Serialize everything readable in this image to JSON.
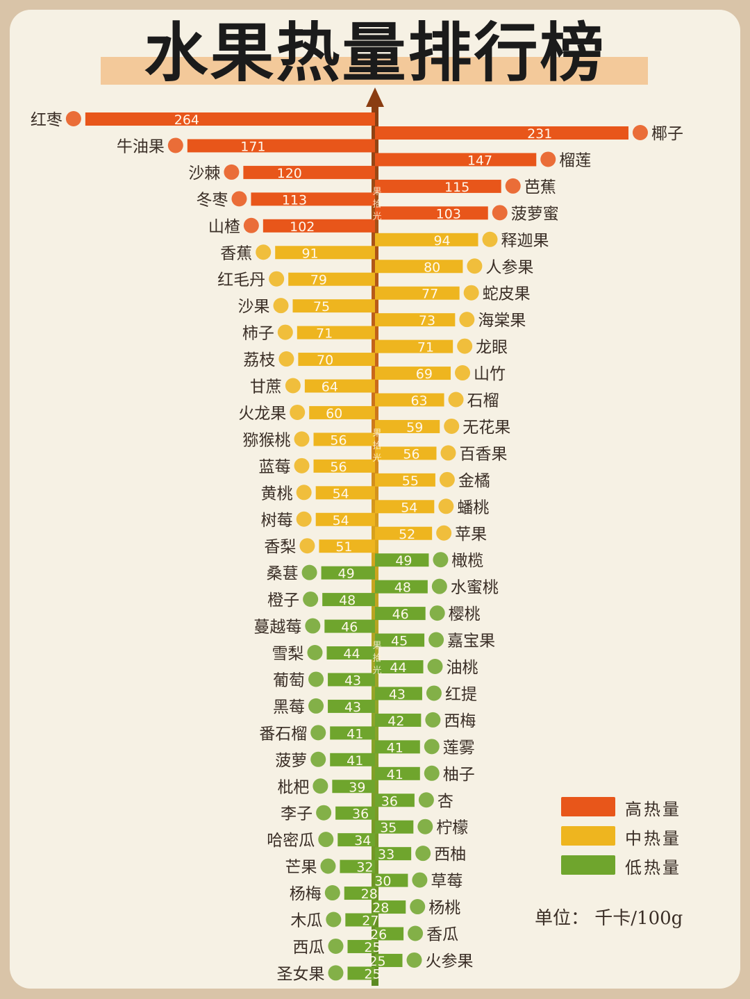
{
  "title": "水果热量排行榜",
  "unit_label": "单位：  千卡/100g",
  "watermark_text": [
    "果",
    "拾",
    "光"
  ],
  "legend": [
    {
      "label": "高热量",
      "color": "#e8561a"
    },
    {
      "label": "中热量",
      "color": "#eeb51f"
    },
    {
      "label": "低热量",
      "color": "#6fa52d"
    }
  ],
  "chart_data": {
    "type": "bar",
    "title": "水果热量排行榜",
    "orientation": "horizontal-diverging",
    "unit": "千卡/100g",
    "legend_position": "bottom-right",
    "series": [
      {
        "side": "left",
        "items": [
          {
            "name": "红枣",
            "value": 264,
            "level": "high"
          },
          {
            "name": "牛油果",
            "value": 171,
            "level": "high"
          },
          {
            "name": "沙棘",
            "value": 120,
            "level": "high"
          },
          {
            "name": "冬枣",
            "value": 113,
            "level": "high"
          },
          {
            "name": "山楂",
            "value": 102,
            "level": "high"
          },
          {
            "name": "香蕉",
            "value": 91,
            "level": "mid"
          },
          {
            "name": "红毛丹",
            "value": 79,
            "level": "mid"
          },
          {
            "name": "沙果",
            "value": 75,
            "level": "mid"
          },
          {
            "name": "柿子",
            "value": 71,
            "level": "mid"
          },
          {
            "name": "荔枝",
            "value": 70,
            "level": "mid"
          },
          {
            "name": "甘蔗",
            "value": 64,
            "level": "mid"
          },
          {
            "name": "火龙果",
            "value": 60,
            "level": "mid"
          },
          {
            "name": "猕猴桃",
            "value": 56,
            "level": "mid"
          },
          {
            "name": "蓝莓",
            "value": 56,
            "level": "mid"
          },
          {
            "name": "黄桃",
            "value": 54,
            "level": "mid"
          },
          {
            "name": "树莓",
            "value": 54,
            "level": "mid"
          },
          {
            "name": "香梨",
            "value": 51,
            "level": "mid"
          },
          {
            "name": "桑葚",
            "value": 49,
            "level": "low"
          },
          {
            "name": "橙子",
            "value": 48,
            "level": "low"
          },
          {
            "name": "蔓越莓",
            "value": 46,
            "level": "low"
          },
          {
            "name": "雪梨",
            "value": 44,
            "level": "low"
          },
          {
            "name": "葡萄",
            "value": 43,
            "level": "low"
          },
          {
            "name": "黑莓",
            "value": 43,
            "level": "low"
          },
          {
            "name": "番石榴",
            "value": 41,
            "level": "low"
          },
          {
            "name": "菠萝",
            "value": 41,
            "level": "low"
          },
          {
            "name": "枇杷",
            "value": 39,
            "level": "low"
          },
          {
            "name": "李子",
            "value": 36,
            "level": "low"
          },
          {
            "name": "哈密瓜",
            "value": 34,
            "level": "low"
          },
          {
            "name": "芒果",
            "value": 32,
            "level": "low"
          },
          {
            "name": "杨梅",
            "value": 28,
            "level": "low"
          },
          {
            "name": "木瓜",
            "value": 27,
            "level": "low"
          },
          {
            "name": "西瓜",
            "value": 25,
            "level": "low"
          },
          {
            "name": "圣女果",
            "value": 25,
            "level": "low"
          }
        ]
      },
      {
        "side": "right",
        "items": [
          {
            "name": "椰子",
            "value": 231,
            "level": "high"
          },
          {
            "name": "榴莲",
            "value": 147,
            "level": "high"
          },
          {
            "name": "芭蕉",
            "value": 115,
            "level": "high"
          },
          {
            "name": "菠萝蜜",
            "value": 103,
            "level": "high"
          },
          {
            "name": "释迦果",
            "value": 94,
            "level": "mid"
          },
          {
            "name": "人参果",
            "value": 80,
            "level": "mid"
          },
          {
            "name": "蛇皮果",
            "value": 77,
            "level": "mid"
          },
          {
            "name": "海棠果",
            "value": 73,
            "level": "mid"
          },
          {
            "name": "龙眼",
            "value": 71,
            "level": "mid"
          },
          {
            "name": "山竹",
            "value": 69,
            "level": "mid"
          },
          {
            "name": "石榴",
            "value": 63,
            "level": "mid"
          },
          {
            "name": "无花果",
            "value": 59,
            "level": "mid"
          },
          {
            "name": "百香果",
            "value": 56,
            "level": "mid"
          },
          {
            "name": "金橘",
            "value": 55,
            "level": "mid"
          },
          {
            "name": "蟠桃",
            "value": 54,
            "level": "mid"
          },
          {
            "name": "苹果",
            "value": 52,
            "level": "mid"
          },
          {
            "name": "橄榄",
            "value": 49,
            "level": "low"
          },
          {
            "name": "水蜜桃",
            "value": 48,
            "level": "low"
          },
          {
            "name": "樱桃",
            "value": 46,
            "level": "low"
          },
          {
            "name": "嘉宝果",
            "value": 45,
            "level": "low"
          },
          {
            "name": "油桃",
            "value": 44,
            "level": "low"
          },
          {
            "name": "红提",
            "value": 43,
            "level": "low"
          },
          {
            "name": "西梅",
            "value": 42,
            "level": "low"
          },
          {
            "name": "莲雾",
            "value": 41,
            "level": "low"
          },
          {
            "name": "柚子",
            "value": 41,
            "level": "low"
          },
          {
            "name": "杏",
            "value": 36,
            "level": "low"
          },
          {
            "name": "柠檬",
            "value": 35,
            "level": "low"
          },
          {
            "name": "西柚",
            "value": 33,
            "level": "low"
          },
          {
            "name": "草莓",
            "value": 30,
            "level": "low"
          },
          {
            "name": "杨桃",
            "value": 28,
            "level": "low"
          },
          {
            "name": "香瓜",
            "value": 26,
            "level": "low"
          },
          {
            "name": "火参果",
            "value": 25,
            "level": "low"
          }
        ]
      }
    ]
  }
}
